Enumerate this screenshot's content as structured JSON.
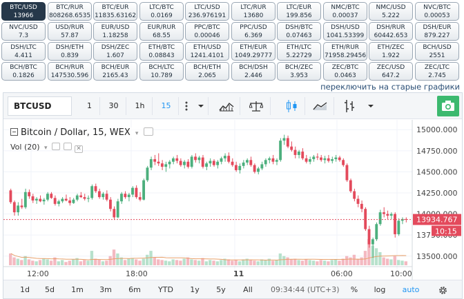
{
  "pairs": [
    {
      "name": "BTC/USD",
      "value": "13966",
      "active": true
    },
    {
      "name": "BTC/RUR",
      "value": "808268.6535"
    },
    {
      "name": "BTC/EUR",
      "value": "11835.63162"
    },
    {
      "name": "LTC/BTC",
      "value": "0.0169"
    },
    {
      "name": "LTC/USD",
      "value": "236.976191"
    },
    {
      "name": "LTC/RUR",
      "value": "13680"
    },
    {
      "name": "LTC/EUR",
      "value": "199.856"
    },
    {
      "name": "NMC/BTC",
      "value": "0.00037"
    },
    {
      "name": "NMC/USD",
      "value": "5.222"
    },
    {
      "name": "NVC/BTC",
      "value": "0.00053"
    },
    {
      "name": "NVC/USD",
      "value": "7.3"
    },
    {
      "name": "USD/RUR",
      "value": "57.87"
    },
    {
      "name": "EUR/USD",
      "value": "1.18258"
    },
    {
      "name": "EUR/RUR",
      "value": "68.55"
    },
    {
      "name": "PPC/BTC",
      "value": "0.00046"
    },
    {
      "name": "PPC/USD",
      "value": "6.369"
    },
    {
      "name": "DSH/BTC",
      "value": "0.07463"
    },
    {
      "name": "DSH/USD",
      "value": "1041.53399"
    },
    {
      "name": "DSH/RUR",
      "value": "60442.653"
    },
    {
      "name": "DSH/EUR",
      "value": "879.227"
    },
    {
      "name": "DSH/LTC",
      "value": "4.411"
    },
    {
      "name": "DSH/ETH",
      "value": "0.839"
    },
    {
      "name": "DSH/ZEC",
      "value": "1.607"
    },
    {
      "name": "ETH/BTC",
      "value": "0.08843"
    },
    {
      "name": "ETH/USD",
      "value": "1241.4101"
    },
    {
      "name": "ETH/EUR",
      "value": "1049.29777"
    },
    {
      "name": "ETH/LTC",
      "value": "5.22729"
    },
    {
      "name": "ETH/RUR",
      "value": "71958.29456"
    },
    {
      "name": "ETH/ZEC",
      "value": "1.922"
    },
    {
      "name": "BCH/USD",
      "value": "2551"
    },
    {
      "name": "BCH/BTC",
      "value": "0.1826"
    },
    {
      "name": "BCH/RUR",
      "value": "147530.596"
    },
    {
      "name": "BCH/EUR",
      "value": "2165.43"
    },
    {
      "name": "BCH/LTC",
      "value": "10.789"
    },
    {
      "name": "BCH/ETH",
      "value": "2.065"
    },
    {
      "name": "BCH/DSH",
      "value": "2.446"
    },
    {
      "name": "BCH/ZEC",
      "value": "3.953"
    },
    {
      "name": "ZEC/BTC",
      "value": "0.0463"
    },
    {
      "name": "ZEC/USD",
      "value": "647.2"
    },
    {
      "name": "ZEC/LTC",
      "value": "2.745"
    }
  ],
  "switch_link": "переключить на старые графики",
  "toolbar": {
    "symbol": "BTCUSD",
    "intervals": [
      "1",
      "30",
      "1h",
      "15"
    ],
    "active_interval": "15",
    "icons": [
      "dots-vertical-icon",
      "chevron-down-icon",
      "indicators-icon",
      "compare-scale-icon",
      "candles-icon",
      "area-chart-icon",
      "bar-style-icon",
      "chevron-down-icon",
      "camera-icon"
    ]
  },
  "legend": {
    "title": "Bitcoin / Dollar, 15, WEX",
    "vol": "Vol (20)"
  },
  "price_axis": {
    "ticks": [
      "15000.000",
      "14750.000",
      "14500.000",
      "14250.000",
      "14000.000",
      "13750.000",
      "13500.000"
    ],
    "current_price": "13934.767",
    "countdown": "10:15"
  },
  "time_axis": [
    "12:00",
    "18:00",
    "11",
    "06:00",
    "10:00"
  ],
  "bottom_bar": {
    "ranges": [
      "1d",
      "5d",
      "1m",
      "3m",
      "6m",
      "YTD",
      "1y",
      "5y",
      "All"
    ],
    "time": "09:34:44 (UTC+3)",
    "percent": "%",
    "log": "log",
    "auto": "auto"
  },
  "colors": {
    "up": "#4caf7d",
    "down": "#e34a5c",
    "up_vol": "#b7e1cc",
    "down_vol": "#f4b9c1",
    "price_line": "#e34a5c",
    "accent": "#2196f3",
    "camera": "#3cb96f"
  },
  "chart_data": {
    "type": "candlestick",
    "title": "Bitcoin / Dollar, 15, WEX",
    "ylim": [
      13400,
      15100
    ],
    "candles": [
      [
        14280,
        14300,
        14120,
        14140
      ],
      [
        14140,
        14160,
        13980,
        14020
      ],
      [
        14020,
        14140,
        13980,
        14100
      ],
      [
        14100,
        14180,
        14060,
        14080
      ],
      [
        14080,
        14300,
        14060,
        14260
      ],
      [
        14260,
        14290,
        14180,
        14210
      ],
      [
        14210,
        14240,
        14130,
        14160
      ],
      [
        14160,
        14200,
        14120,
        14180
      ],
      [
        14180,
        14220,
        14140,
        14150
      ],
      [
        14150,
        14190,
        14110,
        14170
      ],
      [
        14170,
        14260,
        14150,
        14240
      ],
      [
        14240,
        14260,
        14180,
        14190
      ],
      [
        14190,
        14220,
        14100,
        14120
      ],
      [
        14120,
        14170,
        14090,
        14150
      ],
      [
        14150,
        14200,
        14130,
        14180
      ],
      [
        14180,
        14230,
        14150,
        14160
      ],
      [
        14160,
        14200,
        14100,
        14130
      ],
      [
        14130,
        14190,
        14120,
        14170
      ],
      [
        14170,
        14240,
        14150,
        14220
      ],
      [
        14220,
        14260,
        14190,
        14200
      ],
      [
        14200,
        14240,
        14160,
        14180
      ],
      [
        14180,
        14220,
        14140,
        14190
      ],
      [
        14190,
        14350,
        14170,
        14330
      ],
      [
        14330,
        14360,
        14250,
        14270
      ],
      [
        14270,
        14300,
        14180,
        14200
      ],
      [
        14200,
        14260,
        14170,
        14240
      ],
      [
        14240,
        14280,
        14150,
        14170
      ],
      [
        14170,
        14200,
        14030,
        14060
      ],
      [
        14060,
        14090,
        13930,
        13960
      ],
      [
        13960,
        14180,
        13950,
        14150
      ],
      [
        14150,
        14260,
        14120,
        14240
      ],
      [
        14240,
        14270,
        14180,
        14200
      ],
      [
        14200,
        14250,
        14150,
        14230
      ],
      [
        14230,
        14330,
        14200,
        14310
      ],
      [
        14310,
        14340,
        14180,
        14200
      ],
      [
        14200,
        14260,
        14150,
        14170
      ],
      [
        14170,
        14420,
        14160,
        14400
      ],
      [
        14400,
        14570,
        14380,
        14550
      ],
      [
        14550,
        14680,
        14520,
        14650
      ],
      [
        14650,
        14700,
        14580,
        14620
      ],
      [
        14620,
        14720,
        14570,
        14600
      ],
      [
        14600,
        14640,
        14520,
        14560
      ],
      [
        14560,
        14620,
        14500,
        14590
      ],
      [
        14590,
        14640,
        14540,
        14620
      ],
      [
        14620,
        14680,
        14590,
        14660
      ],
      [
        14660,
        14700,
        14600,
        14630
      ],
      [
        14630,
        14660,
        14560,
        14580
      ],
      [
        14580,
        14640,
        14540,
        14620
      ],
      [
        14620,
        14650,
        14540,
        14560
      ],
      [
        14560,
        14700,
        14540,
        14680
      ],
      [
        14680,
        14720,
        14610,
        14640
      ],
      [
        14640,
        14690,
        14600,
        14670
      ],
      [
        14670,
        14700,
        14540,
        14560
      ],
      [
        14560,
        14620,
        14520,
        14600
      ],
      [
        14600,
        14660,
        14560,
        14630
      ],
      [
        14630,
        14650,
        14560,
        14580
      ],
      [
        14580,
        14640,
        14540,
        14620
      ],
      [
        14620,
        14680,
        14590,
        14660
      ],
      [
        14660,
        14720,
        14620,
        14690
      ],
      [
        14690,
        14730,
        14600,
        14620
      ],
      [
        14620,
        14660,
        14560,
        14580
      ],
      [
        14580,
        14620,
        14500,
        14520
      ],
      [
        14520,
        14600,
        14480,
        14570
      ],
      [
        14570,
        14640,
        14540,
        14610
      ],
      [
        14610,
        14660,
        14580,
        14640
      ],
      [
        14640,
        14680,
        14560,
        14580
      ],
      [
        14580,
        14600,
        14480,
        14500
      ],
      [
        14500,
        14560,
        14470,
        14540
      ],
      [
        14540,
        14620,
        14520,
        14590
      ],
      [
        14590,
        14660,
        14560,
        14640
      ],
      [
        14640,
        14680,
        14600,
        14660
      ],
      [
        14660,
        14700,
        14590,
        14620
      ],
      [
        14620,
        14660,
        14580,
        14640
      ],
      [
        14640,
        14900,
        14620,
        14870
      ],
      [
        14870,
        14940,
        14820,
        14900
      ],
      [
        14900,
        14930,
        14780,
        14800
      ],
      [
        14800,
        14860,
        14740,
        14760
      ],
      [
        14760,
        14800,
        14660,
        14700
      ],
      [
        14700,
        14760,
        14660,
        14740
      ],
      [
        14740,
        14780,
        14640,
        14660
      ],
      [
        14660,
        14700,
        14600,
        14620
      ],
      [
        14620,
        14680,
        14590,
        14650
      ],
      [
        14650,
        14700,
        14620,
        14680
      ],
      [
        14680,
        14720,
        14640,
        14670
      ],
      [
        14670,
        14700,
        14620,
        14640
      ],
      [
        14640,
        14690,
        14600,
        14660
      ],
      [
        14660,
        14700,
        14610,
        14630
      ],
      [
        14630,
        14680,
        14600,
        14650
      ],
      [
        14650,
        14700,
        14620,
        14670
      ],
      [
        14670,
        14690,
        14620,
        14640
      ],
      [
        14640,
        14660,
        14560,
        14580
      ],
      [
        14580,
        14600,
        14380,
        14400
      ],
      [
        14400,
        14420,
        14250,
        14270
      ],
      [
        14270,
        14300,
        14150,
        14180
      ],
      [
        14180,
        14220,
        14080,
        14120
      ],
      [
        14120,
        14160,
        14020,
        14060
      ],
      [
        14060,
        14080,
        13800,
        13820
      ],
      [
        13820,
        13860,
        13600,
        13640
      ],
      [
        13640,
        13720,
        13480,
        13700
      ],
      [
        13700,
        13900,
        13680,
        13880
      ],
      [
        13880,
        14050,
        13860,
        14020
      ],
      [
        14020,
        14080,
        13960,
        14000
      ],
      [
        14000,
        14040,
        13940,
        13980
      ],
      [
        13980,
        14020,
        13940,
        14000
      ],
      [
        14000,
        14020,
        13720,
        13760
      ],
      [
        13760,
        13950,
        13740,
        13920
      ],
      [
        13920,
        13960,
        13880,
        13940
      ],
      [
        13940,
        13960,
        13900,
        13934
      ]
    ],
    "volumes": [
      18,
      12,
      10,
      8,
      14,
      9,
      7,
      6,
      8,
      10,
      9,
      7,
      12,
      6,
      8,
      5,
      7,
      9,
      11,
      6,
      8,
      7,
      22,
      10,
      9,
      6,
      7,
      14,
      24,
      18,
      12,
      8,
      10,
      11,
      9,
      7,
      10,
      16,
      22,
      12,
      9,
      8,
      7,
      6,
      9,
      8,
      7,
      10,
      12,
      9,
      8,
      7,
      11,
      6,
      8,
      7,
      6,
      8,
      10,
      9,
      7,
      8,
      6,
      9,
      10,
      8,
      7,
      6,
      9,
      8,
      10,
      7,
      8,
      18,
      14,
      12,
      9,
      10,
      8,
      7,
      9,
      8,
      7,
      6,
      8,
      7,
      6,
      8,
      9,
      7,
      10,
      14,
      12,
      16,
      10,
      12,
      22,
      40,
      30,
      26,
      20,
      12,
      10,
      9,
      14,
      8,
      7,
      6
    ]
  }
}
